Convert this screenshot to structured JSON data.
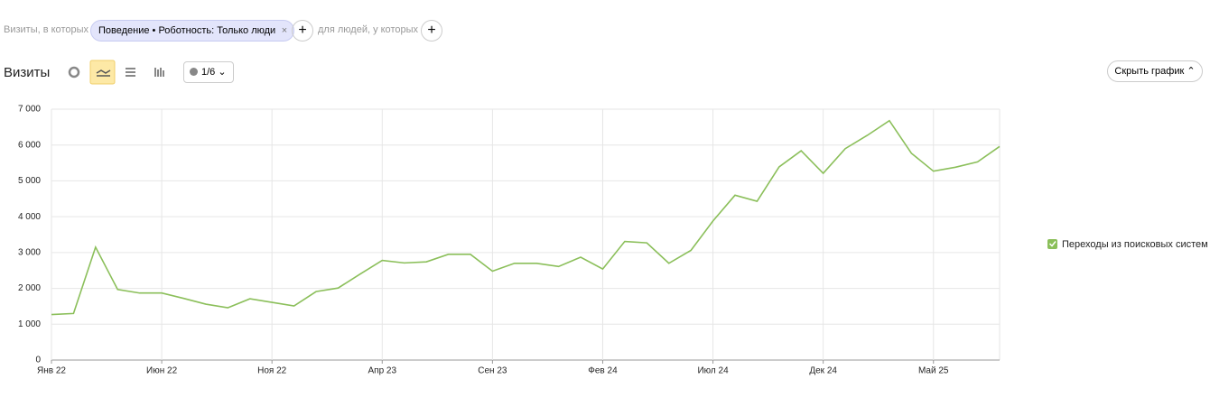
{
  "filter": {
    "prefix": "Визиты, в которых",
    "chip": "Поведение • Роботность: Только люди",
    "suffix": "для людей, у которых"
  },
  "toolbar": {
    "title": "Визиты",
    "annotations": "1/6",
    "hide_chart": "Скрыть график"
  },
  "chart_data": {
    "type": "line",
    "categories": [
      "Янв 22",
      null,
      null,
      null,
      null,
      "Июн 22",
      null,
      null,
      null,
      null,
      "Ноя 22",
      null,
      null,
      null,
      null,
      "Апр 23",
      null,
      null,
      null,
      null,
      "Сен 23",
      null,
      null,
      null,
      null,
      "Фев 24",
      null,
      null,
      null,
      null,
      "Июл 24",
      null,
      null,
      null,
      null,
      "Дек 24",
      null,
      null,
      null,
      null,
      "Май 25",
      null,
      null,
      null
    ],
    "series": [
      {
        "name": "Переходы из поисковых систем",
        "color": "#8bbf5a",
        "values": [
          1270,
          1300,
          3150,
          1970,
          1870,
          1870,
          1720,
          1560,
          1460,
          1710,
          1610,
          1510,
          1910,
          2010,
          2400,
          2780,
          2710,
          2740,
          2950,
          2950,
          2480,
          2700,
          2700,
          2610,
          2870,
          2540,
          3310,
          3270,
          2700,
          3060,
          3880,
          4600,
          4430,
          5390,
          5840,
          5210,
          5900,
          6270,
          6680,
          5770,
          5270,
          5380,
          5530,
          5960
        ]
      }
    ],
    "ylim": [
      0,
      7000
    ],
    "yticks": [
      0,
      {
        "value": 1000,
        "label": "1 000"
      },
      {
        "value": 2000,
        "label": "2 000"
      },
      {
        "value": 3000,
        "label": "3 000"
      },
      {
        "value": 4000,
        "label": "4 000"
      },
      {
        "value": 5000,
        "label": "5 000"
      },
      {
        "value": 6000,
        "label": "6 000"
      },
      {
        "value": 7000,
        "label": "7 000"
      }
    ],
    "grid": true,
    "legend": "right"
  }
}
